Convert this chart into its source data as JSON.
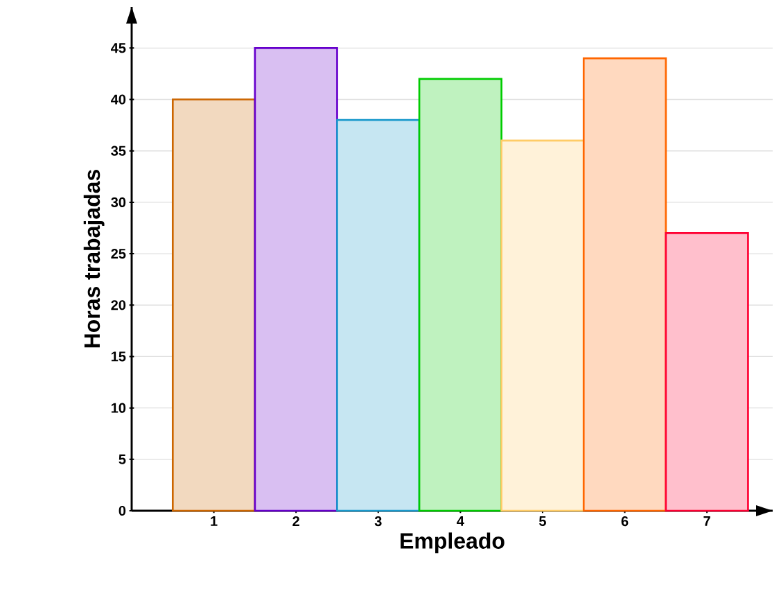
{
  "chart_data": {
    "type": "bar",
    "xlabel": "Empleado",
    "ylabel": "Horas trabajadas",
    "x": [
      1,
      2,
      3,
      4,
      5,
      6,
      7
    ],
    "values": [
      40,
      45,
      38,
      42,
      36,
      44,
      27
    ],
    "colors": [
      "#cc6600",
      "#6600cc",
      "#1a99cc",
      "#00cc00",
      "#ffcc66",
      "#ff6600",
      "#ff0033"
    ],
    "xlim": [
      0,
      7.8
    ],
    "ylim": [
      0,
      49
    ],
    "xticks": [
      1,
      2,
      3,
      4,
      5,
      6,
      7
    ],
    "yticks": [
      {
        "value": 0,
        "label": "0"
      },
      5,
      10,
      15,
      20,
      25,
      30,
      35,
      40,
      45
    ],
    "grid": "y"
  }
}
